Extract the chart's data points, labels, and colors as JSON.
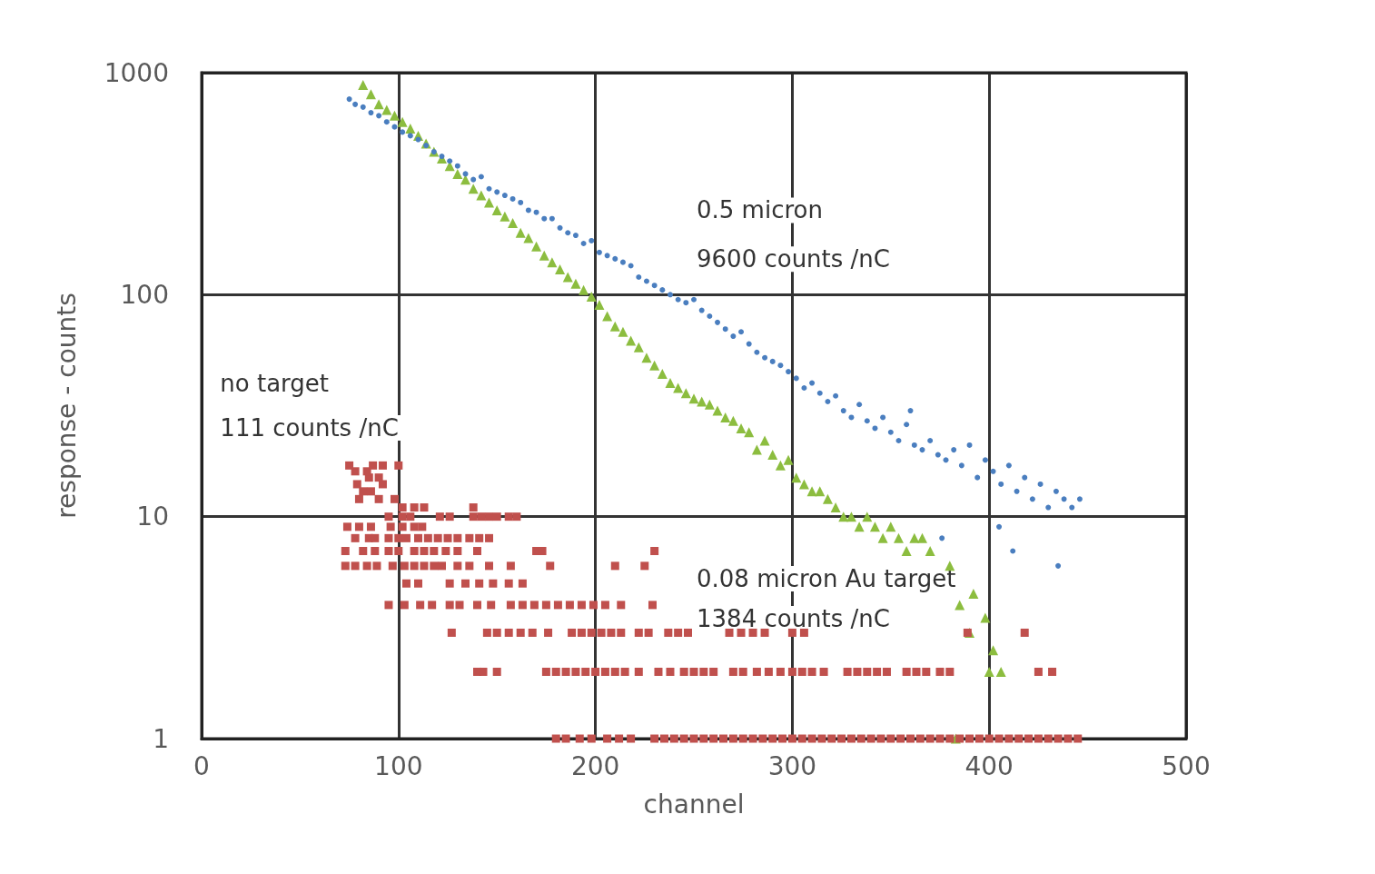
{
  "chart_data": {
    "type": "scatter",
    "xlabel": "channel",
    "ylabel": "response - counts",
    "log": "y",
    "grid": true,
    "xlim": [
      0,
      500
    ],
    "xticks": [
      0,
      100,
      200,
      300,
      400,
      500
    ],
    "ylim": [
      1,
      1000
    ],
    "yticks": [
      1,
      10,
      100,
      1000
    ],
    "annotations": [
      "0.5 micron",
      "9600 counts /nC",
      "no target",
      "111 counts /nC",
      "0.08 micron Au target",
      "1384 counts /nC"
    ],
    "series": [
      {
        "color": "#4a7ebf",
        "marker": "circle",
        "x": [
          75,
          78,
          82,
          86,
          90,
          94,
          98,
          102,
          106,
          110,
          114,
          118,
          122,
          126,
          130,
          134,
          138,
          142,
          146,
          150,
          154,
          158,
          162,
          166,
          170,
          174,
          178,
          182,
          186,
          190,
          194,
          198,
          202,
          206,
          210,
          214,
          218,
          222,
          226,
          230,
          234,
          238,
          242,
          246,
          250,
          254,
          258,
          262,
          266,
          270,
          274,
          278,
          282,
          286,
          290,
          294,
          298,
          302,
          306,
          310,
          314,
          318,
          322,
          326,
          330,
          334,
          338,
          342,
          346,
          350,
          354,
          358,
          362,
          366,
          370,
          374,
          378,
          382,
          386,
          390,
          394,
          398,
          402,
          406,
          410,
          414,
          418,
          422,
          426,
          430,
          434,
          438,
          442,
          446,
          360,
          376,
          405,
          412,
          435
        ],
        "values": [
          760,
          720,
          700,
          660,
          640,
          600,
          570,
          540,
          520,
          500,
          470,
          440,
          420,
          400,
          380,
          350,
          330,
          340,
          300,
          290,
          280,
          270,
          260,
          240,
          235,
          220,
          220,
          200,
          190,
          185,
          170,
          175,
          155,
          150,
          145,
          140,
          135,
          120,
          115,
          110,
          105,
          100,
          95,
          92,
          95,
          85,
          80,
          75,
          70,
          65,
          68,
          60,
          55,
          52,
          50,
          48,
          45,
          42,
          38,
          40,
          36,
          33,
          35,
          30,
          28,
          32,
          27,
          25,
          28,
          24,
          22,
          26,
          21,
          20,
          22,
          19,
          18,
          20,
          17,
          21,
          15,
          18,
          16,
          14,
          17,
          13,
          15,
          12,
          14,
          11,
          13,
          12,
          11,
          12,
          30,
          8,
          9,
          7,
          6
        ]
      },
      {
        "color": "#8cbd3f",
        "marker": "triangle",
        "x": [
          82,
          86,
          90,
          94,
          98,
          102,
          106,
          110,
          114,
          118,
          122,
          126,
          130,
          134,
          138,
          142,
          146,
          150,
          154,
          158,
          162,
          166,
          170,
          174,
          178,
          182,
          186,
          190,
          194,
          198,
          202,
          206,
          210,
          214,
          218,
          222,
          226,
          230,
          234,
          238,
          242,
          246,
          250,
          254,
          258,
          262,
          266,
          270,
          274,
          278,
          282,
          286,
          290,
          294,
          298,
          302,
          306,
          310,
          314,
          318,
          322,
          326,
          330,
          334,
          338,
          342,
          346,
          350,
          354,
          358,
          362,
          366,
          370,
          380,
          385,
          390,
          392,
          398,
          402,
          406,
          400,
          383
        ],
        "values": [
          880,
          800,
          720,
          680,
          640,
          600,
          560,
          520,
          480,
          440,
          410,
          380,
          350,
          330,
          300,
          280,
          260,
          240,
          225,
          210,
          190,
          180,
          165,
          150,
          140,
          130,
          120,
          112,
          105,
          98,
          90,
          80,
          72,
          68,
          62,
          58,
          52,
          48,
          44,
          40,
          38,
          36,
          34,
          33,
          32,
          30,
          28,
          27,
          25,
          24,
          20,
          22,
          19,
          17,
          18,
          15,
          14,
          13,
          13,
          12,
          11,
          10,
          10,
          9,
          10,
          9,
          8,
          9,
          8,
          7,
          8,
          8,
          7,
          6,
          4,
          3,
          4.5,
          3.5,
          2.5,
          2,
          2,
          1
        ]
      },
      {
        "color": "#c0504d",
        "marker": "square",
        "x": [
          180,
          185,
          192,
          198,
          206,
          212,
          218,
          230,
          235,
          240,
          245,
          250,
          255,
          260,
          265,
          270,
          275,
          280,
          285,
          290,
          295,
          300,
          305,
          310,
          315,
          320,
          325,
          330,
          335,
          340,
          345,
          350,
          355,
          360,
          365,
          370,
          375,
          380,
          385,
          390,
          395,
          400,
          405,
          410,
          415,
          420,
          425,
          430,
          435,
          440,
          445,
          140,
          143,
          150,
          175,
          180,
          185,
          190,
          195,
          200,
          205,
          210,
          215,
          222,
          232,
          238,
          245,
          250,
          255,
          260,
          270,
          275,
          282,
          288,
          294,
          300,
          305,
          310,
          316,
          328,
          333,
          338,
          343,
          348,
          358,
          363,
          368,
          375,
          380,
          425,
          432,
          127,
          145,
          150,
          156,
          162,
          168,
          176,
          188,
          193,
          198,
          203,
          208,
          213,
          222,
          227,
          237,
          242,
          247,
          268,
          274,
          280,
          286,
          300,
          306,
          389,
          418,
          95,
          103,
          111,
          117,
          126,
          131,
          140,
          147,
          157,
          163,
          169,
          175,
          181,
          187,
          193,
          199,
          205,
          213,
          229,
          104,
          110,
          126,
          134,
          141,
          148,
          156,
          163,
          73,
          78,
          84,
          89,
          97,
          103,
          108,
          113,
          118,
          122,
          130,
          136,
          146,
          157,
          177,
          210,
          225,
          73,
          82,
          88,
          95,
          100,
          108,
          113,
          118,
          124,
          130,
          140,
          170,
          173,
          230,
          78,
          85,
          88,
          95,
          100,
          104,
          110,
          115,
          120,
          125,
          130,
          136,
          141,
          146,
          74,
          80,
          86,
          96,
          102,
          108,
          112,
          95,
          102,
          106,
          121,
          126,
          138,
          142,
          146,
          150,
          156,
          160,
          102,
          108,
          113,
          138,
          80,
          90,
          98,
          82,
          86,
          79,
          92,
          85,
          90,
          78,
          84,
          75,
          87,
          92,
          100
        ],
        "values": [
          1,
          1,
          1,
          1,
          1,
          1,
          1,
          1,
          1,
          1,
          1,
          1,
          1,
          1,
          1,
          1,
          1,
          1,
          1,
          1,
          1,
          1,
          1,
          1,
          1,
          1,
          1,
          1,
          1,
          1,
          1,
          1,
          1,
          1,
          1,
          1,
          1,
          1,
          1,
          1,
          1,
          1,
          1,
          1,
          1,
          1,
          1,
          1,
          1,
          1,
          1,
          2,
          2,
          2,
          2,
          2,
          2,
          2,
          2,
          2,
          2,
          2,
          2,
          2,
          2,
          2,
          2,
          2,
          2,
          2,
          2,
          2,
          2,
          2,
          2,
          2,
          2,
          2,
          2,
          2,
          2,
          2,
          2,
          2,
          2,
          2,
          2,
          2,
          2,
          2,
          2,
          3,
          3,
          3,
          3,
          3,
          3,
          3,
          3,
          3,
          3,
          3,
          3,
          3,
          3,
          3,
          3,
          3,
          3,
          3,
          3,
          3,
          3,
          3,
          3,
          3,
          3,
          4,
          4,
          4,
          4,
          4,
          4,
          4,
          4,
          4,
          4,
          4,
          4,
          4,
          4,
          4,
          4,
          4,
          4,
          4,
          5,
          5,
          5,
          5,
          5,
          5,
          5,
          5,
          6,
          6,
          6,
          6,
          6,
          6,
          6,
          6,
          6,
          6,
          6,
          6,
          6,
          6,
          6,
          6,
          6,
          7,
          7,
          7,
          7,
          7,
          7,
          7,
          7,
          7,
          7,
          7,
          7,
          7,
          7,
          8,
          8,
          8,
          8,
          8,
          8,
          8,
          8,
          8,
          8,
          8,
          8,
          8,
          8,
          9,
          9,
          9,
          9,
          9,
          9,
          9,
          10,
          10,
          10,
          10,
          10,
          10,
          10,
          10,
          10,
          10,
          10,
          11,
          11,
          11,
          11,
          12,
          12,
          12,
          13,
          13,
          14,
          14,
          15,
          15,
          16,
          16,
          17,
          17,
          17,
          17
        ]
      }
    ]
  }
}
